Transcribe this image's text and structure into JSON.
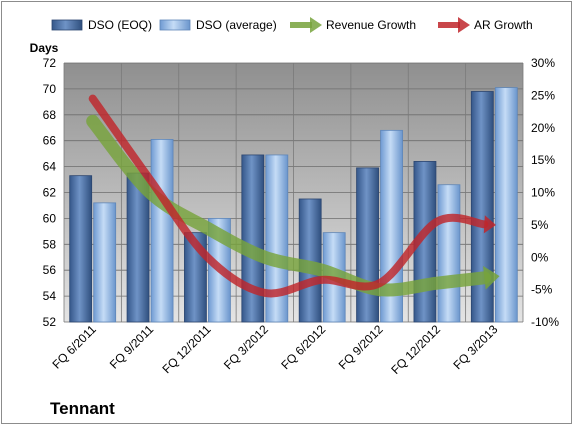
{
  "company": "Tennant",
  "chart_data": {
    "type": "bar",
    "categories": [
      "FQ 6/2011",
      "FQ 9/2011",
      "FQ 12/2011",
      "FQ 3/2012",
      "FQ 6/2012",
      "FQ 9/2012",
      "FQ 12/2012",
      "FQ 3/2013"
    ],
    "y_axis_left": {
      "label": "Days",
      "range": [
        52,
        72
      ],
      "ticks": [
        "52",
        "54",
        "56",
        "58",
        "60",
        "62",
        "64",
        "66",
        "68",
        "70",
        "72"
      ]
    },
    "y_axis_right": {
      "label": "",
      "range": [
        -10,
        30
      ],
      "ticks": [
        "-10%",
        "-5%",
        "0%",
        "5%",
        "10%",
        "15%",
        "20%",
        "25%",
        "30%"
      ]
    },
    "grid": true,
    "legend_position": "top",
    "series": [
      {
        "name": "DSO (EOQ)",
        "type": "bar",
        "axis": "left",
        "color": "#4a6fa5",
        "values": [
          63.3,
          63.5,
          58.9,
          64.9,
          61.5,
          63.9,
          64.4,
          69.8
        ]
      },
      {
        "name": "DSO (average)",
        "type": "bar",
        "axis": "left",
        "color": "#8fb4e3",
        "values": [
          61.2,
          66.1,
          60.0,
          64.9,
          58.9,
          66.8,
          62.6,
          70.1
        ]
      },
      {
        "name": "Revenue Growth",
        "type": "line",
        "axis": "right",
        "color": "#77a33c",
        "values": [
          21,
          10,
          4.5,
          0,
          -2,
          -5,
          -4,
          -3
        ]
      },
      {
        "name": "AR Growth",
        "type": "line",
        "axis": "right",
        "color": "#c0262b",
        "values": [
          24.5,
          12,
          0,
          -5.5,
          -3.5,
          -4,
          5.5,
          5
        ]
      }
    ]
  }
}
